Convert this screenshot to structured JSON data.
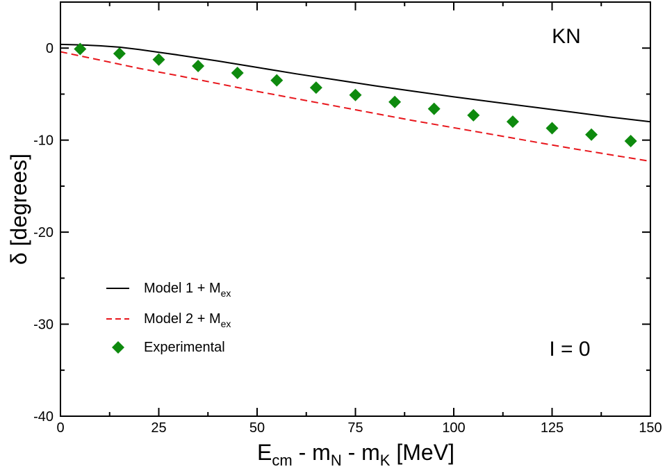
{
  "chart_data": {
    "type": "line",
    "xlabel": {
      "main": "E",
      "sub1": "cm",
      "mid1": " - m",
      "sub2": "N",
      "mid2": " - m",
      "sub3": "K",
      "tail": " [MeV]"
    },
    "ylabel": "δ [degrees]",
    "xlim": [
      0,
      150
    ],
    "ylim": [
      -40,
      5
    ],
    "xticks": [
      0,
      25,
      50,
      75,
      100,
      125,
      150
    ],
    "yticks": [
      0,
      -10,
      -20,
      -30,
      -40
    ],
    "annotations": {
      "top_right": "KN",
      "bottom_right": "I = 0"
    },
    "legend": {
      "position": "lower-left",
      "entries": [
        {
          "label": "Model 1 + M",
          "sub": "ex",
          "style": "solid",
          "color": "#000000"
        },
        {
          "label": "Model 2 + M",
          "sub": "ex",
          "style": "dashed",
          "color": "#e8151b"
        },
        {
          "label": "Experimental",
          "sub": "",
          "style": "diamond",
          "color": "#0e8a0e"
        }
      ]
    },
    "series": [
      {
        "name": "Model 1 + Mex",
        "color": "#000000",
        "style": "solid",
        "x": [
          0,
          5,
          10,
          15,
          20,
          25,
          30,
          40,
          50,
          60,
          70,
          80,
          90,
          100,
          110,
          120,
          130,
          140,
          150
        ],
        "y": [
          0.4,
          0.35,
          0.25,
          0.1,
          -0.15,
          -0.45,
          -0.75,
          -1.4,
          -2.1,
          -2.8,
          -3.45,
          -4.1,
          -4.7,
          -5.3,
          -5.85,
          -6.4,
          -6.95,
          -7.5,
          -8.0
        ]
      },
      {
        "name": "Model 2 + Mex",
        "color": "#e8151b",
        "style": "dashed",
        "x": [
          0,
          10,
          20,
          30,
          40,
          50,
          60,
          70,
          80,
          90,
          100,
          110,
          120,
          130,
          140,
          150
        ],
        "y": [
          -0.4,
          -1.3,
          -2.2,
          -3.0,
          -3.85,
          -4.7,
          -5.5,
          -6.3,
          -7.1,
          -7.9,
          -8.65,
          -9.4,
          -10.15,
          -10.9,
          -11.6,
          -12.3
        ]
      },
      {
        "name": "Experimental",
        "color": "#0e8a0e",
        "style": "diamond",
        "x": [
          5,
          15,
          25,
          35,
          45,
          55,
          65,
          75,
          85,
          95,
          105,
          115,
          125,
          135,
          145
        ],
        "y": [
          -0.1,
          -0.6,
          -1.25,
          -1.95,
          -2.7,
          -3.5,
          -4.3,
          -5.1,
          -5.85,
          -6.6,
          -7.3,
          -8.0,
          -8.7,
          -9.4,
          -10.1
        ]
      }
    ]
  }
}
